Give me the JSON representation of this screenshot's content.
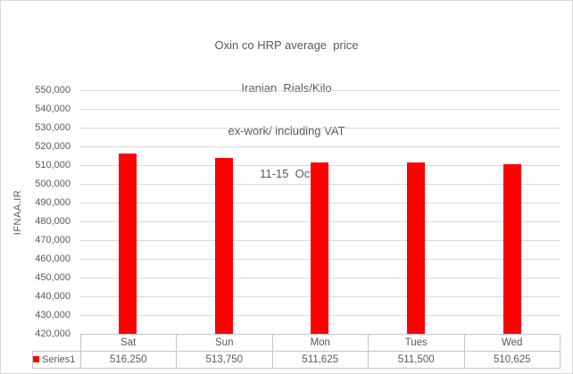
{
  "window": {
    "background": "#ffffff",
    "border_color": "#d9d9d9"
  },
  "chart_data": {
    "type": "bar",
    "title_lines": [
      "Oxin co HRP average  price",
      "Iranian  Rials/Kilo",
      "ex-work/ including VAT",
      "11-15  Oct"
    ],
    "categories": [
      "Sat",
      "Sun",
      "Mon",
      "Tues",
      "Wed"
    ],
    "series": [
      {
        "name": "Series1",
        "values": [
          516250,
          513750,
          511625,
          511500,
          510625
        ],
        "color": "#ff0000"
      }
    ],
    "xlabel": "",
    "ylabel": "IFNAA.IR",
    "ylim": [
      420000,
      550000
    ],
    "ytick_step": 10000,
    "grid": true,
    "gridline_color": "#d9d9d9",
    "text_color": "#595959",
    "legend_position": "bottom-left",
    "data_table_shown": true
  }
}
